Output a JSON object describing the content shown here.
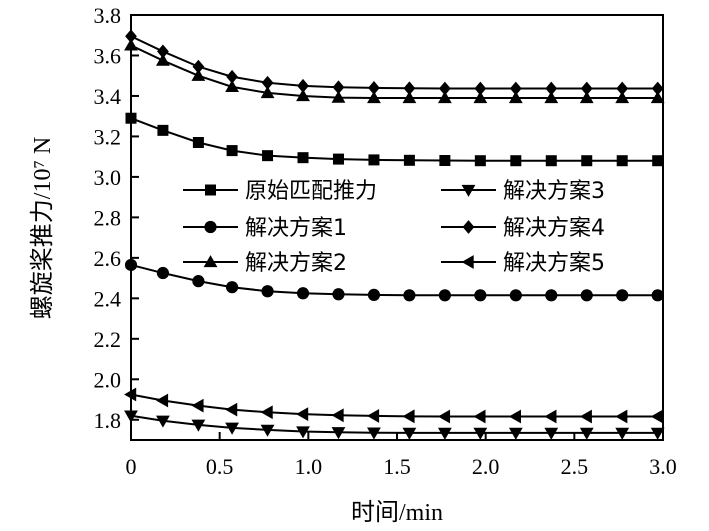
{
  "chart_data": {
    "type": "line",
    "xlabel": "时间/min",
    "ylabel": "螺旋桨推力/10⁷ N",
    "xlim": [
      0,
      3.0
    ],
    "ylim": [
      1.7,
      3.8
    ],
    "x_ticks": [
      "0",
      "0.5",
      "1.0",
      "1.5",
      "2.0",
      "2.5",
      "3.0"
    ],
    "y_ticks": [
      "1.8",
      "2.0",
      "2.2",
      "2.4",
      "2.6",
      "2.8",
      "3.0",
      "3.2",
      "3.4",
      "3.6",
      "3.8"
    ],
    "grid": false,
    "legend_position": "center",
    "x": [
      0,
      0.18,
      0.38,
      0.57,
      0.77,
      0.97,
      1.17,
      1.37,
      1.57,
      1.77,
      1.97,
      2.17,
      2.37,
      2.57,
      2.77,
      2.97
    ],
    "series": [
      {
        "name": "原始匹配推力",
        "marker": "square",
        "values": [
          3.29,
          3.23,
          3.17,
          3.13,
          3.105,
          3.095,
          3.088,
          3.084,
          3.082,
          3.081,
          3.08,
          3.08,
          3.08,
          3.08,
          3.08,
          3.08
        ]
      },
      {
        "name": "解决方案1",
        "marker": "circle",
        "values": [
          2.565,
          2.525,
          2.485,
          2.455,
          2.435,
          2.425,
          2.42,
          2.417,
          2.415,
          2.415,
          2.415,
          2.415,
          2.415,
          2.415,
          2.415,
          2.415
        ]
      },
      {
        "name": "解决方案2",
        "marker": "triangle-up",
        "values": [
          3.65,
          3.575,
          3.5,
          3.445,
          3.415,
          3.4,
          3.392,
          3.39,
          3.39,
          3.39,
          3.39,
          3.39,
          3.39,
          3.39,
          3.39,
          3.39
        ]
      },
      {
        "name": "解决方案3",
        "marker": "triangle-down",
        "values": [
          1.82,
          1.795,
          1.775,
          1.76,
          1.75,
          1.742,
          1.738,
          1.736,
          1.735,
          1.735,
          1.735,
          1.735,
          1.735,
          1.735,
          1.735,
          1.735
        ]
      },
      {
        "name": "解决方案4",
        "marker": "diamond",
        "values": [
          3.695,
          3.62,
          3.545,
          3.495,
          3.465,
          3.45,
          3.443,
          3.44,
          3.438,
          3.437,
          3.437,
          3.437,
          3.437,
          3.437,
          3.437,
          3.437
        ]
      },
      {
        "name": "解决方案5",
        "marker": "triangle-left",
        "values": [
          1.925,
          1.895,
          1.87,
          1.85,
          1.837,
          1.828,
          1.822,
          1.819,
          1.817,
          1.816,
          1.816,
          1.816,
          1.816,
          1.816,
          1.816,
          1.816
        ]
      }
    ]
  }
}
